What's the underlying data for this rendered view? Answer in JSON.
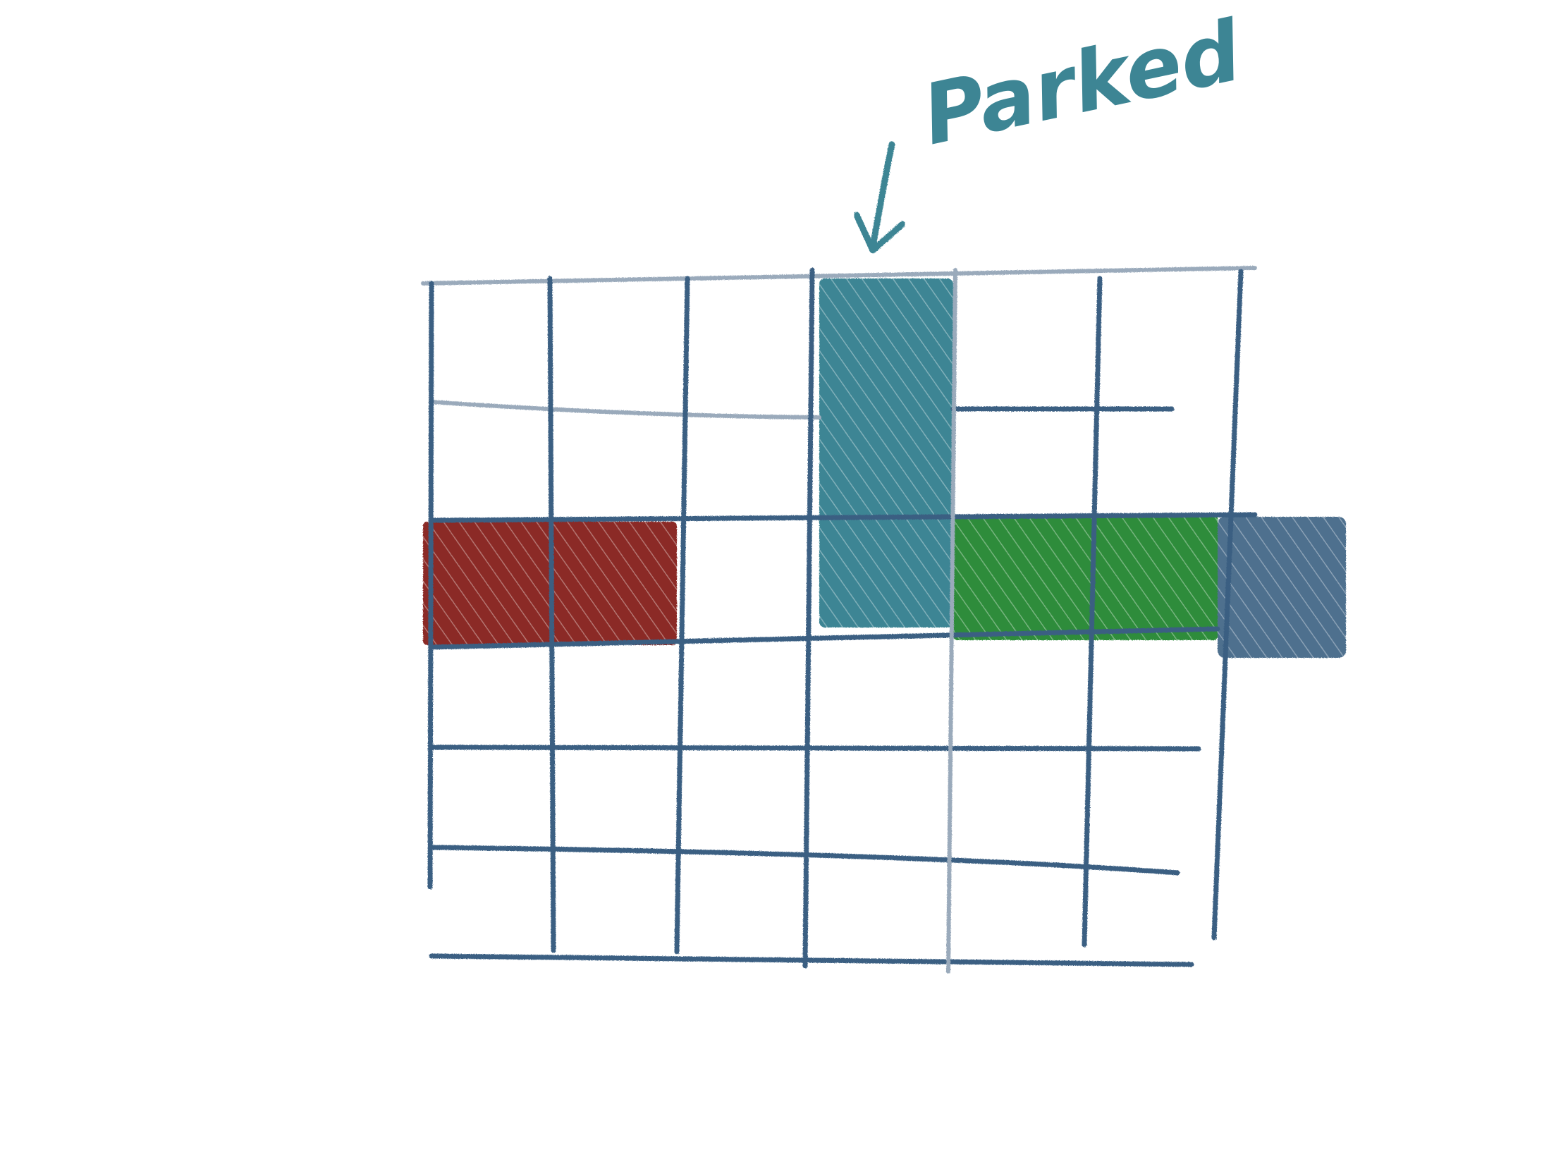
{
  "annotation": {
    "label": "Parked"
  },
  "colors": {
    "grid": "#3a5f82",
    "grid_light": "#9aaabb",
    "parked_block": "#3d8594",
    "red_block": "#8b2a25",
    "green_block": "#2e8c3a",
    "overflow_block": "#3a5f82",
    "annotation": "#3d8594"
  },
  "grid": {
    "columns": 6,
    "rows": 5
  },
  "blocks": [
    {
      "name": "red-block",
      "color_key": "red_block",
      "row": 3,
      "col_start": 1,
      "col_end": 2
    },
    {
      "name": "parked-block",
      "color_key": "parked_block",
      "row_start": 1,
      "row_end": 3,
      "col": 4
    },
    {
      "name": "green-block",
      "color_key": "green_block",
      "row": 3,
      "col_start": 5,
      "col_end": 6
    },
    {
      "name": "overflow-block",
      "color_key": "overflow_block",
      "row": 3,
      "col_start": 7,
      "col_end": 7
    }
  ]
}
